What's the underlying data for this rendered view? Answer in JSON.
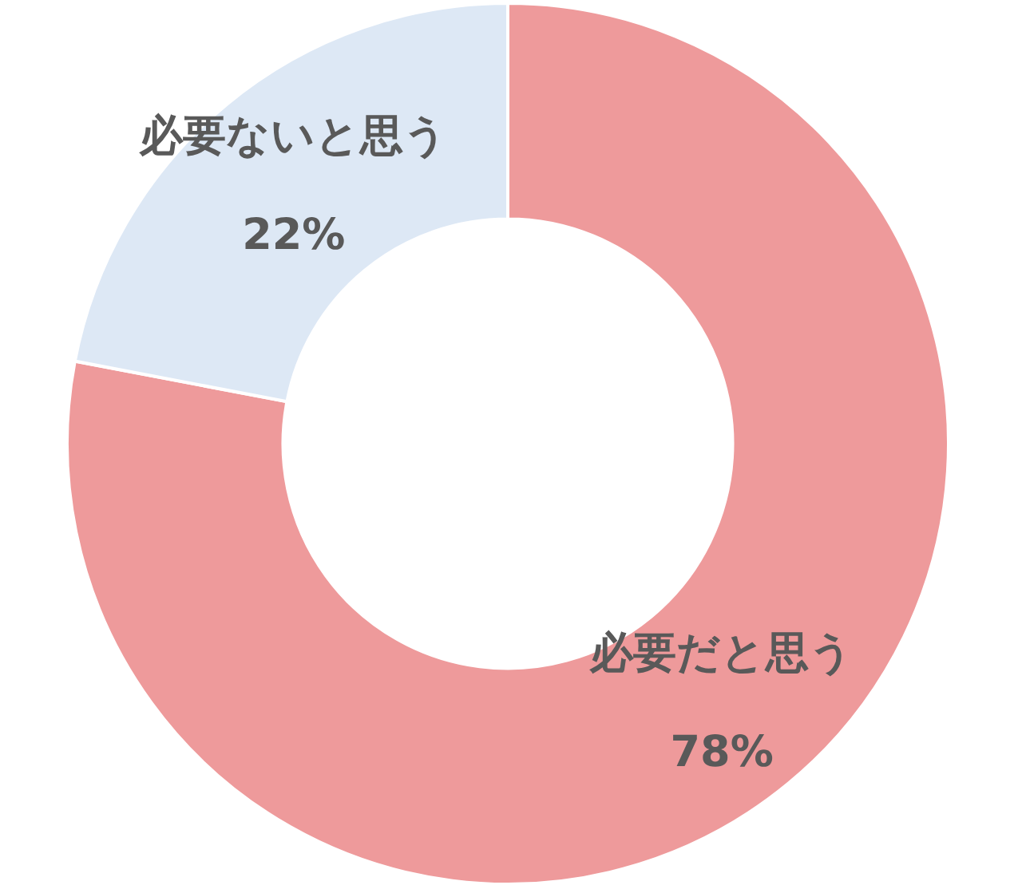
{
  "chart_data": {
    "type": "donut",
    "categories": [
      "必要だと思う",
      "必要ないと思う"
    ],
    "values": [
      78,
      22
    ],
    "colors": [
      "#ee9a9b",
      "#dde8f5"
    ],
    "value_labels": [
      "78%",
      "22%"
    ]
  }
}
